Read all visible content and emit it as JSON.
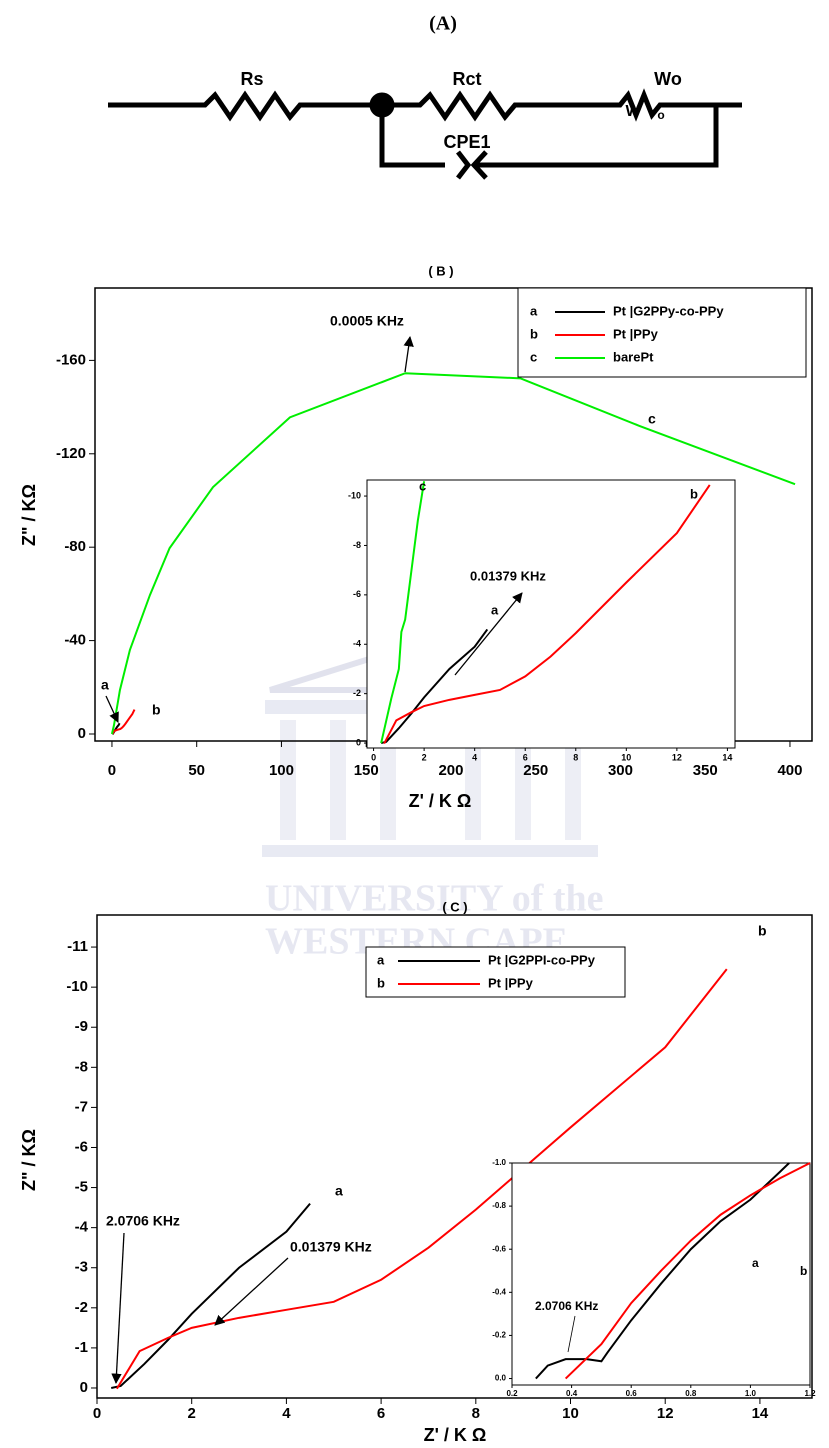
{
  "panel_a": {
    "title": "(A)",
    "components": [
      {
        "label": "Rs"
      },
      {
        "label": "Rct"
      },
      {
        "label": "Wo",
        "symbol": "W",
        "symbol_sub": "o"
      },
      {
        "label": "CPE1"
      }
    ]
  },
  "watermark": {
    "line1": "UNIVERSITY of the",
    "line2": "WESTERN CAPE"
  },
  "chart_data": [
    {
      "type": "line",
      "title": "( B )",
      "xlabel": "Z' / K Ω",
      "ylabel": "Z\" / KΩ",
      "xlim": [
        -10,
        413
      ],
      "ylim": [
        3,
        -191
      ],
      "xticks": [
        0,
        50,
        100,
        150,
        200,
        250,
        300,
        350,
        400
      ],
      "yticks": [
        0,
        -40,
        -80,
        -120,
        -160
      ],
      "legend": "upper right",
      "series": [
        {
          "key": "a",
          "name": "Pt |G2PPy-co-PPy",
          "color": "#000000",
          "x": [
            0.3,
            0.5,
            1,
            1.5,
            2,
            3,
            4,
            4.5
          ],
          "values": [
            0,
            -0.05,
            -0.6,
            -1.2,
            -1.85,
            -3,
            -3.9,
            -4.6
          ]
        },
        {
          "key": "b",
          "name": "Pt |PPy",
          "color": "#ff0000",
          "x": [
            0.42,
            0.9,
            1.5,
            2,
            3,
            4,
            5,
            6,
            7,
            8,
            10,
            12,
            13.3
          ],
          "values": [
            0.02,
            -0.92,
            -1.25,
            -1.5,
            -1.75,
            -1.95,
            -2.15,
            -2.7,
            -3.5,
            -4.45,
            -6.5,
            -8.5,
            -10.45
          ]
        },
        {
          "key": "c",
          "name": "barePt",
          "color": "#00ee00",
          "x": [
            0,
            1.2,
            4.7,
            10.6,
            22.4,
            34,
            59.6,
            105,
            173,
            241,
            311,
            403
          ],
          "values": [
            0,
            -3.8,
            -18.8,
            -36,
            -59.5,
            -79.6,
            -105.7,
            -135.6,
            -154.5,
            -152.3,
            -132,
            -107
          ]
        }
      ],
      "annotations": [
        "0.0005 KHz",
        "a",
        "b",
        "c"
      ]
    },
    {
      "type": "line",
      "xlim": [
        -0.26,
        14.3
      ],
      "ylim": [
        0.2,
        -10.65
      ],
      "xticks": [
        0,
        2,
        4,
        6,
        8,
        10,
        12,
        14
      ],
      "yticks": [
        0,
        -2,
        -4,
        -6,
        -8,
        -10
      ],
      "series": [
        {
          "color": "#000000",
          "x": [
            0.3,
            0.5,
            1,
            1.5,
            2,
            3,
            4,
            4.5
          ],
          "values": [
            0,
            -0.05,
            -0.6,
            -1.2,
            -1.85,
            -3,
            -3.9,
            -4.6
          ]
        },
        {
          "color": "#ff0000",
          "x": [
            0.42,
            0.9,
            1.5,
            2,
            3,
            4,
            5,
            6,
            7,
            8,
            10,
            12,
            13.3
          ],
          "values": [
            0.02,
            -0.92,
            -1.25,
            -1.5,
            -1.75,
            -1.95,
            -2.15,
            -2.7,
            -3.5,
            -4.45,
            -6.5,
            -8.5,
            -10.45
          ]
        },
        {
          "color": "#00ee00",
          "x": [
            0.3,
            0.7,
            1,
            1.1,
            1.25,
            1.5,
            1.75,
            2
          ],
          "values": [
            0,
            -1.8,
            -3,
            -4.5,
            -5,
            -7,
            -9,
            -10.6
          ]
        }
      ],
      "annotations": [
        "c",
        "0.01379 KHz",
        "a",
        "b"
      ]
    },
    {
      "type": "line",
      "title": "( C )",
      "xlabel": "Z' / K Ω",
      "ylabel": "Z\" / KΩ",
      "xlim": [
        0,
        15.1
      ],
      "ylim": [
        0.25,
        -11.8
      ],
      "xticks": [
        0,
        2,
        4,
        6,
        8,
        10,
        12,
        14
      ],
      "yticks": [
        0,
        -1,
        -2,
        -3,
        -4,
        -5,
        -6,
        -7,
        -8,
        -9,
        -10,
        -11
      ],
      "legend": "upper center",
      "series": [
        {
          "key": "a",
          "name": "Pt |G2PPI-co-PPy",
          "color": "#000000",
          "x": [
            0.3,
            0.5,
            1,
            1.5,
            2,
            3,
            4,
            4.5
          ],
          "values": [
            0,
            -0.05,
            -0.6,
            -1.2,
            -1.85,
            -3,
            -3.9,
            -4.6
          ]
        },
        {
          "key": "b",
          "name": "Pt |PPy",
          "color": "#ff0000",
          "x": [
            0.42,
            0.9,
            1.5,
            2,
            3,
            4,
            5,
            6,
            7,
            8,
            10,
            12,
            13.3
          ],
          "values": [
            0.02,
            -0.92,
            -1.25,
            -1.5,
            -1.75,
            -1.95,
            -2.15,
            -2.7,
            -3.5,
            -4.45,
            -6.5,
            -8.5,
            -10.45
          ]
        }
      ],
      "annotations": [
        "2.0706 KHz",
        "0.01379 KHz",
        "a",
        "b"
      ]
    },
    {
      "type": "line",
      "xlim": [
        0.2,
        1.2
      ],
      "ylim": [
        0.03,
        -1.0
      ],
      "xticks": [
        0.2,
        0.4,
        0.6,
        0.8,
        {
          "value": 1.0,
          "label": "1.0"
        },
        1.2
      ],
      "yticks": [
        {
          "value": 0,
          "label": "0.0"
        },
        -0.2,
        -0.4,
        -0.6,
        -0.8,
        {
          "value": -1.0,
          "label": "-1.0"
        }
      ],
      "series": [
        {
          "color": "#000000",
          "x": [
            0.28,
            0.32,
            0.38,
            0.45,
            0.5,
            0.52,
            0.6,
            0.7,
            0.8,
            0.9,
            1.0,
            1.1,
            1.13
          ],
          "values": [
            0,
            -0.06,
            -0.09,
            -0.09,
            -0.08,
            -0.12,
            -0.27,
            -0.44,
            -0.6,
            -0.73,
            -0.83,
            -0.96,
            -1.0
          ]
        },
        {
          "color": "#ff0000",
          "x": [
            0.38,
            0.5,
            0.6,
            0.7,
            0.8,
            0.9,
            1.0,
            1.1,
            1.2
          ],
          "values": [
            0,
            -0.16,
            -0.35,
            -0.5,
            -0.64,
            -0.76,
            -0.85,
            -0.93,
            -1.0
          ]
        }
      ],
      "annotations": [
        "2.0706 KHz",
        "a",
        "b"
      ]
    }
  ]
}
